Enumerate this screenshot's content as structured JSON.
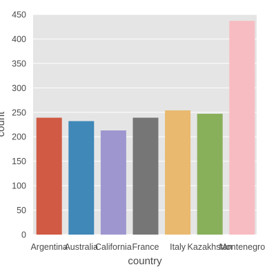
{
  "chart_data": {
    "type": "bar",
    "title": "",
    "xlabel": "country",
    "ylabel": "count",
    "categories": [
      "Argentina",
      "Australia",
      "California",
      "France",
      "Italy",
      "Kazakhstan",
      "Montenegro"
    ],
    "values": [
      239,
      232,
      213,
      239,
      254,
      247,
      437
    ],
    "colors": [
      "#d05a44",
      "#3f88b8",
      "#9e97cf",
      "#767676",
      "#e9b96f",
      "#88b05a",
      "#f7bcc1"
    ],
    "ylim": [
      0,
      450
    ],
    "yticks": [
      0,
      50,
      100,
      150,
      200,
      250,
      300,
      350,
      400,
      450
    ],
    "grid": true,
    "legend": "none",
    "background": "#e5e5e5"
  }
}
